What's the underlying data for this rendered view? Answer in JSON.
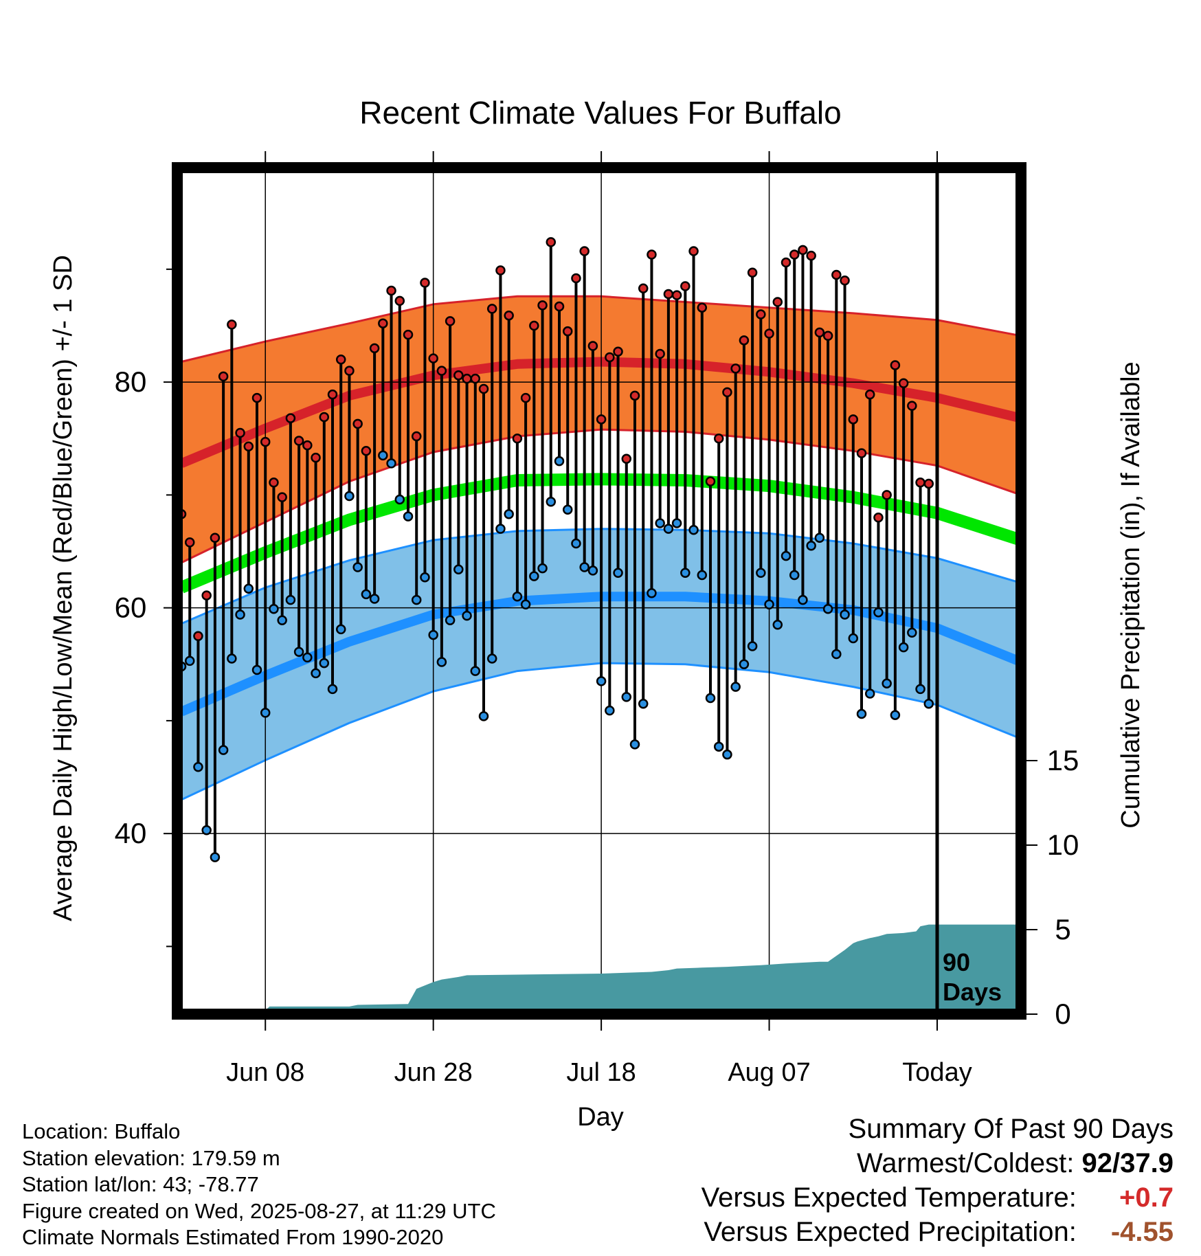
{
  "chart_data": {
    "type": "line",
    "title": "Recent Climate Values For Buffalo",
    "xlabel": "Day",
    "ylabel": "Average Daily High/Low/Mean (Red/Blue/Green) +/- 1 SD",
    "y2label": "Cumulative Precipitation (in), If Available",
    "ylim": [
      24,
      99
    ],
    "y2lim": [
      0,
      40
    ],
    "y_ticks": [
      "40",
      "60",
      "80"
    ],
    "y2_ticks": [
      "0",
      "5",
      "10",
      "15"
    ],
    "x_tick_labels": [
      "Jun 08",
      "Jun 28",
      "Jul 18",
      "Aug 07",
      "Today"
    ],
    "today_day_index": 90,
    "today_label": [
      "90",
      "Days"
    ],
    "series_legend": {
      "high": "Red",
      "low": "Blue",
      "mean": "Green"
    },
    "colors": {
      "high_band": "#f47a30",
      "high_normal": "#d6222a",
      "low_band": "#80c0e8",
      "low_normal": "#1e90ff",
      "mean_normal": "#00e600",
      "precip": "#4899a1",
      "high_dot": "#d42a2a",
      "low_dot": "#2a8fe0"
    },
    "normals": {
      "days": [
        0,
        10,
        20,
        30,
        40,
        50,
        60,
        70,
        80,
        90,
        100
      ],
      "high_mean": [
        72.8,
        75.9,
        78.8,
        80.6,
        81.6,
        81.8,
        81.6,
        80.9,
        79.9,
        78.6,
        76.8
      ],
      "high_upper": [
        81.8,
        83.6,
        85.2,
        86.9,
        87.6,
        87.6,
        87.1,
        86.6,
        86.1,
        85.5,
        84.1
      ],
      "high_lower": [
        64.0,
        67.6,
        71.2,
        73.8,
        75.2,
        75.8,
        75.6,
        74.9,
        73.9,
        72.6,
        70.0
      ],
      "low_mean": [
        50.8,
        54.0,
        57.0,
        59.4,
        60.6,
        61.0,
        61.0,
        60.6,
        59.8,
        58.2,
        55.2
      ],
      "low_upper": [
        58.6,
        61.8,
        64.2,
        66.0,
        66.8,
        67.0,
        66.9,
        66.6,
        65.7,
        64.4,
        62.2
      ],
      "low_lower": [
        43.0,
        46.5,
        49.8,
        52.6,
        54.4,
        55.1,
        55.0,
        54.3,
        53.0,
        51.4,
        48.4
      ],
      "mean": [
        61.8,
        64.9,
        67.8,
        70.0,
        71.3,
        71.4,
        71.3,
        70.8,
        69.8,
        68.4,
        66.0
      ]
    },
    "daily": {
      "days": [
        0,
        1,
        2,
        3,
        4,
        5,
        6,
        7,
        8,
        9,
        10,
        11,
        12,
        13,
        14,
        15,
        16,
        17,
        18,
        19,
        20,
        21,
        22,
        23,
        24,
        25,
        26,
        27,
        28,
        29,
        30,
        31,
        32,
        33,
        34,
        35,
        36,
        37,
        38,
        39,
        40,
        41,
        42,
        43,
        44,
        45,
        46,
        47,
        48,
        49,
        50,
        51,
        52,
        53,
        54,
        55,
        56,
        57,
        58,
        59,
        60,
        61,
        62,
        63,
        64,
        65,
        66,
        67,
        68,
        69,
        70,
        71,
        72,
        73,
        74,
        75,
        76,
        77,
        78,
        79,
        80,
        81,
        82,
        83,
        84,
        85,
        86,
        87,
        88,
        89
      ],
      "high": [
        68.3,
        65.8,
        57.5,
        61.1,
        66.2,
        80.5,
        85.1,
        75.5,
        74.3,
        78.6,
        74.7,
        71.1,
        69.8,
        76.8,
        74.8,
        74.4,
        73.3,
        76.9,
        78.9,
        82.0,
        81.0,
        76.3,
        73.9,
        83.0,
        85.2,
        88.1,
        87.2,
        84.2,
        75.2,
        88.8,
        82.1,
        81.0,
        85.4,
        80.6,
        80.3,
        80.3,
        79.4,
        86.5,
        89.9,
        85.9,
        75.0,
        78.6,
        85.0,
        86.8,
        92.4,
        86.7,
        84.5,
        89.2,
        91.6,
        83.2,
        76.7,
        82.2,
        82.7,
        73.2,
        78.8,
        88.3,
        91.3,
        82.5,
        87.8,
        87.7,
        88.5,
        91.6,
        86.6,
        71.2,
        75.0,
        79.1,
        81.2,
        83.7,
        89.7,
        86.0,
        84.3,
        87.1,
        90.6,
        91.3,
        91.7,
        91.2,
        84.4,
        84.1,
        89.5,
        89.0,
        76.7,
        73.7,
        78.9,
        68.0,
        70.0,
        81.5,
        79.9,
        77.9,
        71.1,
        71.0
      ],
      "low": [
        54.8,
        55.3,
        45.9,
        40.3,
        37.9,
        47.4,
        55.5,
        59.4,
        61.7,
        54.5,
        50.7,
        59.9,
        58.9,
        60.7,
        56.1,
        55.6,
        54.2,
        55.1,
        52.8,
        58.1,
        69.9,
        63.6,
        61.2,
        60.8,
        73.5,
        72.8,
        69.6,
        68.1,
        60.7,
        62.7,
        57.6,
        55.2,
        58.9,
        63.4,
        59.3,
        54.4,
        50.4,
        55.5,
        67.0,
        68.3,
        61.0,
        60.3,
        62.8,
        63.5,
        69.4,
        73.0,
        68.7,
        65.7,
        63.6,
        63.3,
        53.5,
        50.9,
        63.1,
        52.1,
        47.9,
        51.5,
        61.3,
        67.5,
        67.0,
        67.5,
        63.1,
        66.9,
        62.9,
        52.0,
        47.7,
        47.0,
        53.0,
        55.0,
        56.6,
        63.1,
        60.3,
        58.5,
        64.6,
        62.9,
        60.7,
        65.5,
        66.2,
        59.9,
        55.9,
        59.4,
        57.3,
        50.6,
        52.4,
        59.6,
        53.3,
        50.5,
        56.5,
        57.8,
        52.8,
        51.5
      ]
    },
    "precip_cumulative": {
      "days": [
        0,
        9.5,
        10.5,
        20,
        21,
        27,
        28,
        30,
        31,
        33,
        34,
        50,
        56,
        58,
        59,
        62,
        65,
        67,
        69,
        72,
        76,
        77,
        79,
        80,
        80.5,
        82,
        83,
        84,
        86,
        87.5,
        88,
        89,
        100
      ],
      "values": [
        0,
        0,
        0.45,
        0.45,
        0.55,
        0.6,
        1.5,
        1.9,
        2.05,
        2.2,
        2.3,
        2.4,
        2.5,
        2.6,
        2.7,
        2.75,
        2.8,
        2.85,
        2.9,
        3.0,
        3.1,
        3.1,
        3.8,
        4.2,
        4.3,
        4.5,
        4.6,
        4.75,
        4.8,
        4.9,
        5.2,
        5.3,
        5.3
      ]
    }
  },
  "info": {
    "location": "Location: Buffalo",
    "elevation": "Station elevation: 179.59 m",
    "latlon": "Station lat/lon: 43; -78.77",
    "created": "Figure created on Wed, 2025-08-27, at 11:29 UTC",
    "normals": "Climate Normals Estimated From 1990-2020"
  },
  "summary": {
    "title": "Summary Of Past 90 Days",
    "warmest_coldest_label": "Warmest/Coldest:",
    "warmest_coldest_value": "92/37.9",
    "temp_label": "Versus Expected Temperature:",
    "temp_value": "+0.7",
    "temp_color": "#d42a2a",
    "precip_label": "Versus Expected Precipitation:",
    "precip_value": "-4.55",
    "precip_color": "#a0522d"
  }
}
